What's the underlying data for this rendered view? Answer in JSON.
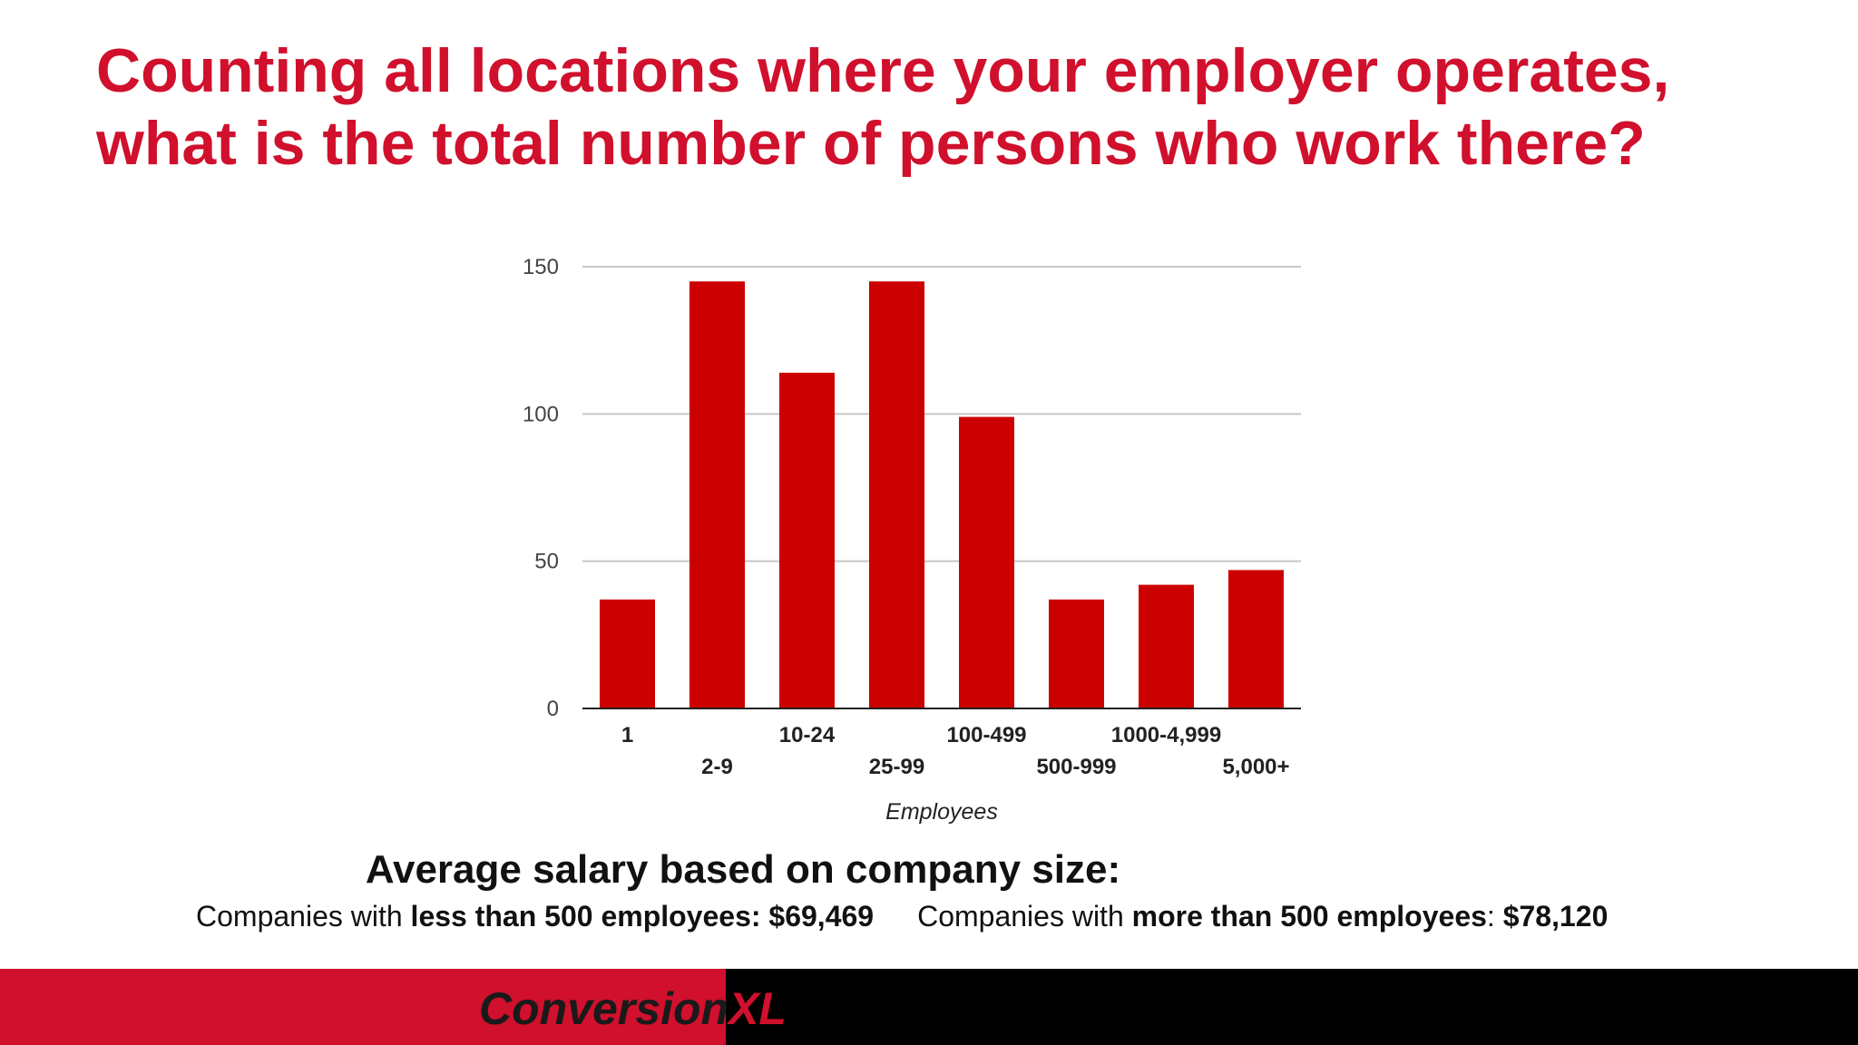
{
  "slide": {
    "title_line1": "Counting all locations where your employer operates,",
    "title_line2": "what is the total number of persons who work there?",
    "accent_color": "#d0102c"
  },
  "chart_data": {
    "type": "bar",
    "categories": [
      "1",
      "2-9",
      "10-24",
      "25-99",
      "100-499",
      "500-999",
      "1000-4,999",
      "5,000+"
    ],
    "values": [
      37,
      145,
      114,
      145,
      99,
      37,
      42,
      47
    ],
    "xlabel": "Employees",
    "ylabel": "",
    "ylim": [
      0,
      150
    ],
    "yticks": [
      0,
      50,
      100,
      150
    ],
    "grid": true,
    "bar_color": "#cc0000"
  },
  "salary": {
    "heading": "Average salary based on company size:",
    "left_prefix": "Companies with ",
    "left_bold": "less than 500 employees: $69,469",
    "right_prefix": "Companies with ",
    "right_bold1": "more than 500 employees",
    "right_colon": ": ",
    "right_bold2": "$78,120"
  },
  "footer": {
    "logo_part1": "Conversion",
    "logo_part2": "XL"
  }
}
